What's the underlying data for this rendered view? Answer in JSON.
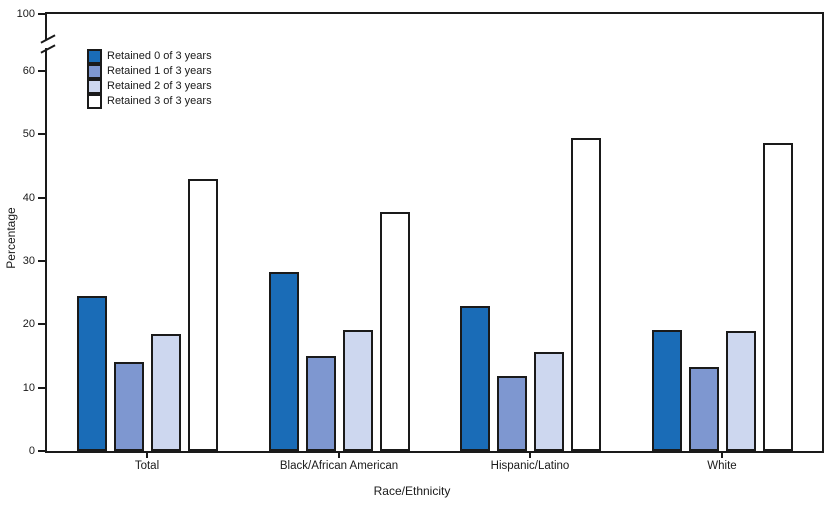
{
  "chart_data": {
    "type": "bar",
    "title": "",
    "xlabel": "Race/Ethnicity",
    "ylabel": "Percentage",
    "categories": [
      "Total",
      "Black/African American",
      "Hispanic/Latino",
      "White"
    ],
    "series": [
      {
        "name": "Retained 0 of 3 years",
        "color": "#1a6cb7",
        "values": [
          24.5,
          28.2,
          22.9,
          19.1
        ]
      },
      {
        "name": "Retained 1 of 3 years",
        "color": "#7e97d0",
        "values": [
          14.0,
          15.0,
          11.8,
          13.3
        ]
      },
      {
        "name": "Retained 2 of 3 years",
        "color": "#cdd7ef",
        "values": [
          18.5,
          19.1,
          15.6,
          18.9
        ]
      },
      {
        "name": "Retained 3 of 3 years",
        "color": "#ffffff",
        "values": [
          42.9,
          37.8,
          49.5,
          48.6
        ]
      }
    ],
    "y_ticks": [
      0,
      10,
      20,
      30,
      40,
      50,
      60,
      100
    ],
    "ylim": [
      0,
      100
    ],
    "y_axis_break_between": [
      60,
      100
    ],
    "grid": false,
    "legend_position": "top-left",
    "axis_color": "#1a1a1a",
    "bar_border_color": "#1a1a1a"
  }
}
